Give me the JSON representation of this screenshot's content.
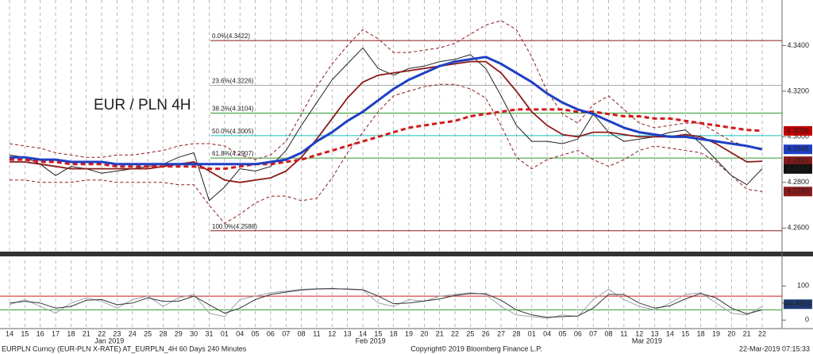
{
  "chart_data": [
    {
      "type": "line",
      "title": "EUR / PLN 4H",
      "title_color": "#d21a1a",
      "categories": [
        "14",
        "15",
        "16",
        "17",
        "18",
        "21",
        "22",
        "23",
        "24",
        "25",
        "28",
        "29",
        "30",
        "31",
        "01",
        "04",
        "05",
        "06",
        "07",
        "08",
        "11",
        "12",
        "13",
        "14",
        "15",
        "18",
        "19",
        "20",
        "21",
        "22",
        "25",
        "26",
        "27",
        "28",
        "01",
        "04",
        "05",
        "06",
        "07",
        "08",
        "11",
        "12",
        "13",
        "14",
        "15",
        "18",
        "19",
        "20",
        "21",
        "22"
      ],
      "months": [
        "Jan 2019",
        "Feb 2019",
        "Mar 2019"
      ],
      "ylim": [
        4.25,
        4.36
      ],
      "yticks": [
        {
          "value": 4.26,
          "label": "4.2600"
        },
        {
          "value": 4.28,
          "label": "4.2800"
        },
        {
          "value": 4.3,
          "label": "4.3000"
        },
        {
          "value": 4.32,
          "label": "4.3200"
        },
        {
          "value": 4.34,
          "label": "4.3400"
        }
      ],
      "series": [
        {
          "color": "#8b1a1a",
          "style": "dashed-thin",
          "values": [
            4.297,
            4.296,
            4.295,
            4.293,
            4.292,
            4.291,
            4.291,
            4.292,
            4.292,
            4.293,
            4.294,
            4.296,
            4.297,
            4.297,
            4.296,
            4.292,
            4.29,
            4.292,
            4.298,
            4.31,
            4.322,
            4.332,
            4.34,
            4.347,
            4.343,
            4.337,
            4.337,
            4.338,
            4.339,
            4.341,
            4.345,
            4.349,
            4.351,
            4.347,
            4.335,
            4.32,
            4.31,
            4.306,
            4.314,
            4.318,
            4.312,
            4.306,
            4.304,
            4.305,
            4.306,
            4.306,
            4.302,
            4.298,
            4.296,
            4.295
          ]
        },
        {
          "color": "#8b1a1a",
          "style": "dashed-thin",
          "values": [
            4.281,
            4.281,
            4.28,
            4.28,
            4.28,
            4.281,
            4.281,
            4.28,
            4.28,
            4.28,
            4.28,
            4.279,
            4.279,
            4.27,
            4.262,
            4.266,
            4.271,
            4.274,
            4.274,
            4.272,
            4.273,
            4.282,
            4.293,
            4.302,
            4.311,
            4.318,
            4.32,
            4.322,
            4.323,
            4.323,
            4.321,
            4.317,
            4.305,
            4.291,
            4.286,
            4.29,
            4.292,
            4.294,
            4.29,
            4.287,
            4.29,
            4.294,
            4.296,
            4.295,
            4.294,
            4.293,
            4.289,
            4.283,
            4.277,
            4.276
          ]
        },
        {
          "color": "#222222",
          "style": "thin",
          "values": [
            4.292,
            4.291,
            4.288,
            4.283,
            4.287,
            4.286,
            4.284,
            4.285,
            4.286,
            4.287,
            4.288,
            4.291,
            4.293,
            4.272,
            4.278,
            4.286,
            4.285,
            4.287,
            4.294,
            4.305,
            4.315,
            4.325,
            4.332,
            4.339,
            4.33,
            4.327,
            4.33,
            4.331,
            4.333,
            4.334,
            4.336,
            4.33,
            4.318,
            4.305,
            4.298,
            4.298,
            4.297,
            4.299,
            4.31,
            4.302,
            4.298,
            4.299,
            4.3,
            4.302,
            4.303,
            4.297,
            4.29,
            4.283,
            4.279,
            4.286
          ]
        },
        {
          "color": "#8b1a1a",
          "style": "medium",
          "values": [
            4.289,
            4.289,
            4.288,
            4.287,
            4.286,
            4.286,
            4.286,
            4.286,
            4.286,
            4.286,
            4.287,
            4.288,
            4.289,
            4.285,
            4.281,
            4.28,
            4.281,
            4.282,
            4.285,
            4.291,
            4.299,
            4.308,
            4.317,
            4.324,
            4.327,
            4.328,
            4.329,
            4.33,
            4.331,
            4.332,
            4.333,
            4.333,
            4.328,
            4.32,
            4.311,
            4.305,
            4.301,
            4.3,
            4.302,
            4.302,
            4.301,
            4.3,
            4.3,
            4.3,
            4.301,
            4.3,
            4.297,
            4.293,
            4.289,
            4.2893
          ]
        },
        {
          "color": "#d21a1a",
          "style": "dashed-thick",
          "values": [
            4.29,
            4.29,
            4.289,
            4.289,
            4.288,
            4.288,
            4.288,
            4.287,
            4.287,
            4.287,
            4.287,
            4.287,
            4.287,
            4.286,
            4.286,
            4.287,
            4.288,
            4.288,
            4.289,
            4.29,
            4.292,
            4.294,
            4.296,
            4.298,
            4.3,
            4.302,
            4.304,
            4.305,
            4.306,
            4.307,
            4.309,
            4.31,
            4.311,
            4.312,
            4.312,
            4.312,
            4.312,
            4.311,
            4.311,
            4.31,
            4.309,
            4.309,
            4.308,
            4.308,
            4.307,
            4.306,
            4.305,
            4.304,
            4.303,
            4.3026
          ]
        },
        {
          "color": "#1f3fc4",
          "style": "thick",
          "values": [
            4.291,
            4.291,
            4.29,
            4.29,
            4.289,
            4.289,
            4.289,
            4.288,
            4.288,
            4.288,
            4.288,
            4.288,
            4.288,
            4.288,
            4.288,
            4.288,
            4.288,
            4.289,
            4.29,
            4.293,
            4.298,
            4.302,
            4.307,
            4.311,
            4.316,
            4.321,
            4.325,
            4.328,
            4.331,
            4.333,
            4.334,
            4.335,
            4.332,
            4.328,
            4.324,
            4.319,
            4.315,
            4.312,
            4.31,
            4.307,
            4.304,
            4.302,
            4.301,
            4.3,
            4.3,
            4.299,
            4.298,
            4.297,
            4.296,
            4.2945
          ]
        }
      ],
      "fib_levels": [
        {
          "value": 4.3422,
          "label": "0.0%(4.3422)",
          "color": "#8b1a1a"
        },
        {
          "value": 4.3226,
          "label": "23.6%(4.3226)",
          "color": "#aaaaaa"
        },
        {
          "value": 4.3104,
          "label": "38.2%(4.3104)",
          "color": "#2e9c2e"
        },
        {
          "value": 4.3005,
          "label": "50.0%(4.3005)",
          "color": "#19c0c0"
        },
        {
          "value": 4.2907,
          "label": "61.8%(4.2907)",
          "color": "#2e9c2e"
        },
        {
          "value": 4.2588,
          "label": "100.0%(4.2588)",
          "color": "#8b1a1a"
        }
      ],
      "last_values": [
        {
          "value": 4.3026,
          "label": "4.3026",
          "color": "#c00000"
        },
        {
          "value": 4.2945,
          "label": "4.2945",
          "color": "#1f3fc4"
        },
        {
          "value": 4.2893,
          "label": "4.2893",
          "color": "#8b1a1a"
        },
        {
          "value": 4.2859,
          "label": "4.2859",
          "color": "#111111"
        },
        {
          "value": 4.276,
          "label": "4.2760",
          "color": "#8b1a1a"
        }
      ]
    },
    {
      "type": "line",
      "ylim": [
        -25,
        175
      ],
      "yticks": [
        0,
        50,
        100
      ],
      "levels": [
        {
          "value": 70,
          "color": "#d21a1a"
        },
        {
          "value": 30,
          "color": "#2e9c2e"
        }
      ],
      "series": [
        {
          "color": "#9aa3b0",
          "style": "thin",
          "values": [
            45,
            60,
            40,
            20,
            50,
            65,
            55,
            35,
            60,
            70,
            40,
            65,
            75,
            20,
            10,
            60,
            70,
            80,
            85,
            90,
            92,
            93,
            90,
            88,
            50,
            40,
            60,
            55,
            70,
            75,
            80,
            75,
            40,
            15,
            10,
            5,
            15,
            10,
            60,
            90,
            60,
            40,
            30,
            50,
            75,
            80,
            50,
            20,
            15,
            40
          ]
        },
        {
          "color": "#333333",
          "style": "thin",
          "values": [
            50,
            55,
            50,
            35,
            40,
            58,
            60,
            45,
            50,
            65,
            55,
            55,
            70,
            45,
            20,
            35,
            60,
            75,
            82,
            88,
            91,
            92,
            91,
            89,
            70,
            48,
            50,
            56,
            62,
            72,
            78,
            77,
            58,
            30,
            15,
            8,
            10,
            12,
            35,
            75,
            75,
            50,
            35,
            42,
            62,
            78,
            65,
            35,
            18,
            30
          ]
        }
      ],
      "last_values": [
        {
          "value": 46.4894,
          "label": "46.4894",
          "color": "#1f3b73"
        }
      ]
    }
  ],
  "footer": {
    "left": "EURPLN Curncy (EUR-PLN X-RATE) AT_EURPLN_4H 60 Days 240 Minutes",
    "center": "Copyright© 2019 Bloomberg Finance L.P.",
    "right": "22-Mar-2019 07:15:33"
  }
}
